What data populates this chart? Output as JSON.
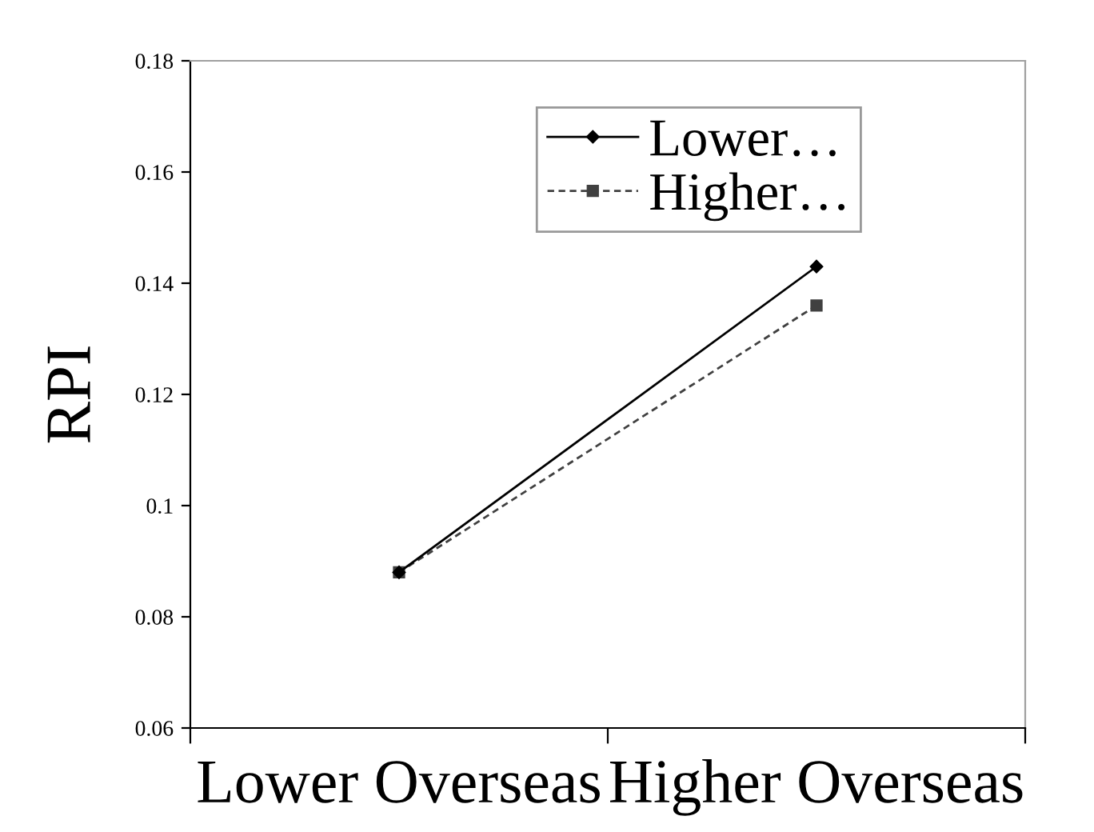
{
  "chart_data": {
    "type": "line",
    "ylabel": "RPI",
    "categories": [
      "Lower Overseas",
      "Higher Overseas"
    ],
    "series": [
      {
        "name": "Lower…",
        "color": "#000000",
        "values": [
          0.088,
          0.143
        ],
        "marker": "diamond",
        "line_style": "solid"
      },
      {
        "name": "Higher…",
        "color": "#404040",
        "values": [
          0.088,
          0.136
        ],
        "marker": "square",
        "line_style": "dashed"
      }
    ],
    "ylim": [
      0.06,
      0.18
    ],
    "yticks": [
      0.06,
      0.08,
      0.1,
      0.12,
      0.14,
      0.16,
      0.18
    ],
    "grid": false,
    "legend": "top right"
  }
}
